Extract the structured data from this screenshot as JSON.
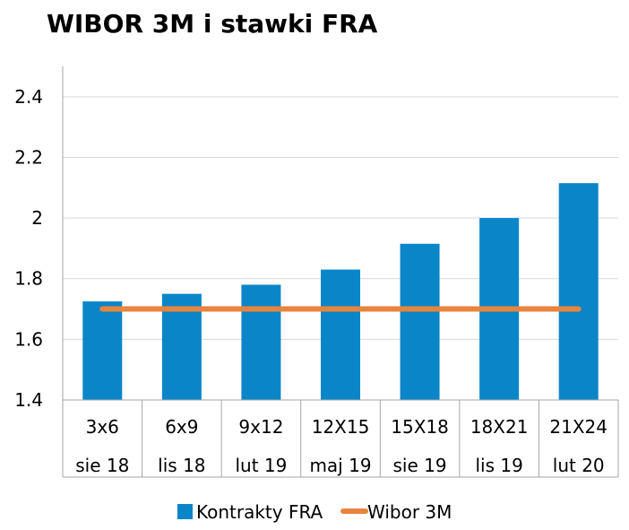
{
  "chart_data": {
    "type": "bar",
    "title": "WIBOR 3M i stawki FRA",
    "categories": [
      "3x6",
      "6x9",
      "9x12",
      "12X15",
      "15X18",
      "18X21",
      "21X24"
    ],
    "subcategories": [
      "sie 18",
      "lis 18",
      "lut 19",
      "maj 19",
      "sie 19",
      "lis 19",
      "lut 20"
    ],
    "series": [
      {
        "name": "Kontrakty FRA",
        "type": "bar",
        "color": "#0A86C8",
        "values": [
          1.725,
          1.75,
          1.78,
          1.83,
          1.915,
          2.0,
          2.115
        ]
      },
      {
        "name": "Wibor 3M",
        "type": "line",
        "color": "#E8843C",
        "values": [
          1.7,
          1.7,
          1.7,
          1.7,
          1.7,
          1.7,
          1.7
        ]
      }
    ],
    "yticks": [
      "1.4",
      "1.6",
      "1.8",
      "2",
      "2.2",
      "2.4"
    ],
    "ylim": [
      1.4,
      2.5
    ],
    "grid": true,
    "legend": "bottom",
    "gridColor": "#D9D9D9",
    "axisColor": "#A6A6A6"
  }
}
